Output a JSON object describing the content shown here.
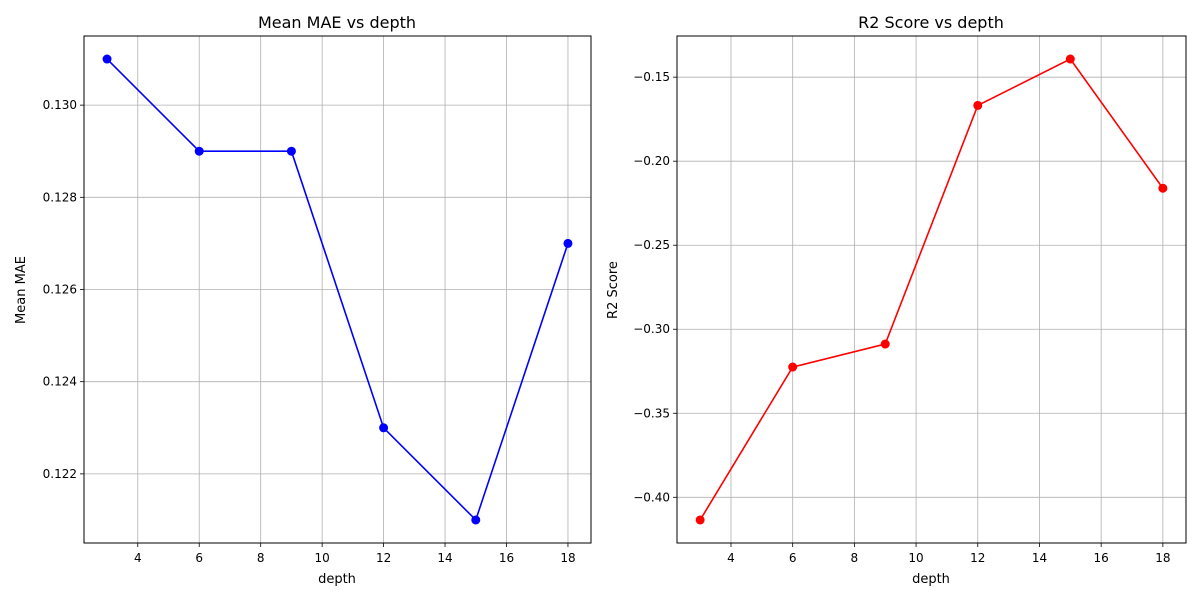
{
  "chart_data": [
    {
      "type": "line",
      "title": "Mean MAE vs depth",
      "xlabel": "depth",
      "ylabel": "Mean MAE",
      "grid": true,
      "x": [
        3,
        6,
        9,
        12,
        15,
        18
      ],
      "series": [
        {
          "values": [
            0.131,
            0.129,
            0.129,
            0.123,
            0.121,
            0.127
          ],
          "color": "#0000ff",
          "marker": "circle"
        }
      ],
      "xlim": [
        2.25,
        18.75
      ],
      "ylim": [
        0.1205,
        0.1315
      ],
      "xticks": [
        4,
        6,
        8,
        10,
        12,
        14,
        16,
        18
      ],
      "xtick_labels": [
        "4",
        "6",
        "8",
        "10",
        "12",
        "14",
        "16",
        "18"
      ],
      "yticks": [
        0.122,
        0.124,
        0.126,
        0.128,
        0.13
      ],
      "ytick_labels": [
        "0.122",
        "0.124",
        "0.126",
        "0.128",
        "0.130"
      ]
    },
    {
      "type": "line",
      "title": "R2 Score vs depth",
      "xlabel": "depth",
      "ylabel": "R2 Score",
      "grid": true,
      "x": [
        3,
        6,
        9,
        12,
        15,
        18
      ],
      "series": [
        {
          "values": [
            -0.4135,
            -0.3225,
            -0.3088,
            -0.1668,
            -0.1392,
            -0.2161
          ],
          "color": "#ff0000",
          "marker": "circle"
        }
      ],
      "xlim": [
        2.25,
        18.75
      ],
      "ylim": [
        -0.4272,
        -0.1255
      ],
      "xticks": [
        4,
        6,
        8,
        10,
        12,
        14,
        16,
        18
      ],
      "xtick_labels": [
        "4",
        "6",
        "8",
        "10",
        "12",
        "14",
        "16",
        "18"
      ],
      "yticks": [
        -0.4,
        -0.35,
        -0.3,
        -0.25,
        -0.2,
        -0.15
      ],
      "ytick_labels": [
        "−0.40",
        "−0.35",
        "−0.30",
        "−0.25",
        "−0.20",
        "−0.15"
      ]
    }
  ]
}
